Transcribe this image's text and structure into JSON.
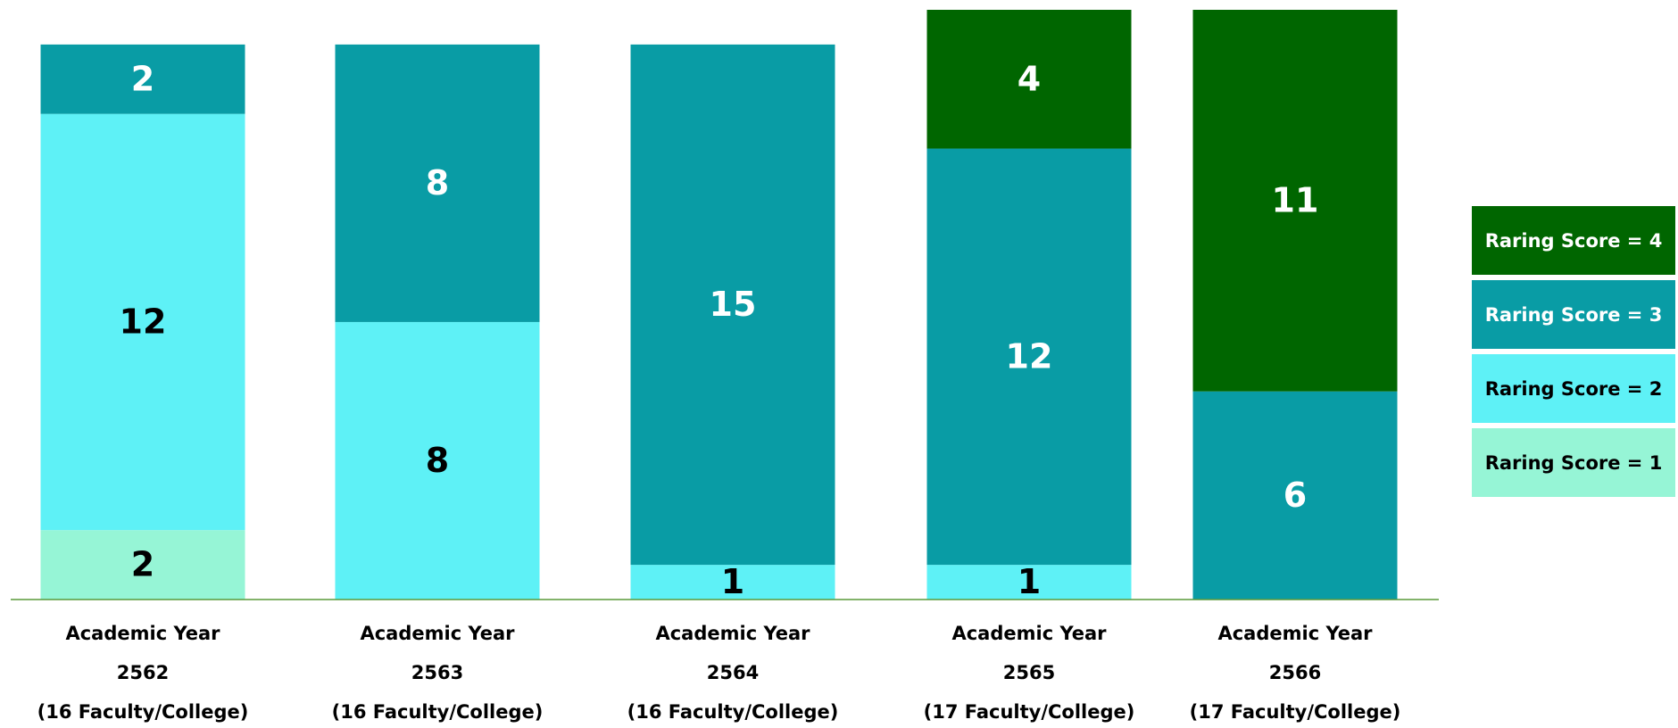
{
  "chart_data": {
    "type": "stacked_bar",
    "categories": [
      [
        "Academic Year",
        "2562",
        "(16 Faculty/College)"
      ],
      [
        "Academic Year",
        "2563",
        "(16 Faculty/College)"
      ],
      [
        "Academic Year",
        "2564",
        "(16 Faculty/College)"
      ],
      [
        "Academic Year",
        "2565",
        "(17 Faculty/College)"
      ],
      [
        "Academic Year",
        "2566",
        "(17 Faculty/College)"
      ]
    ],
    "series": [
      {
        "name": "Raring Score = 1",
        "color": "#96f5d6",
        "values": [
          2,
          null,
          null,
          null,
          null
        ]
      },
      {
        "name": "Raring Score = 2",
        "color": "#5ef1f6",
        "values": [
          12,
          8,
          1,
          1,
          null
        ]
      },
      {
        "name": "Raring Score = 3",
        "color": "#099ca5",
        "values": [
          2,
          8,
          15,
          12,
          6
        ]
      },
      {
        "name": "Raring Score = 4",
        "color": "#006600",
        "values": [
          null,
          null,
          null,
          4,
          11
        ]
      }
    ],
    "ylim": [
      0,
      17
    ],
    "legend": "right"
  }
}
